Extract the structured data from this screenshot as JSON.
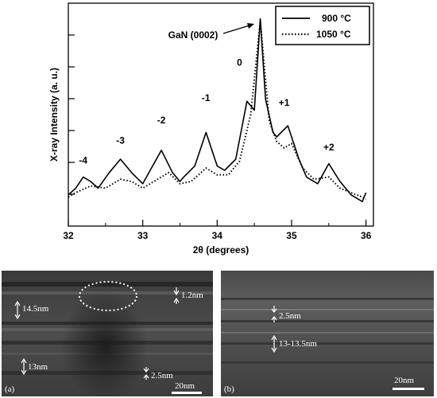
{
  "chart_data": {
    "type": "line",
    "xlabel": "2θ (degrees)",
    "ylabel": "X-ray Intensity (a. u.)",
    "xlim": [
      32,
      36.1
    ],
    "ylim": [
      0,
      100
    ],
    "x_ticks": [
      "32",
      "33",
      "34",
      "35",
      "36"
    ],
    "legend": {
      "placement": "top-right"
    },
    "series": [
      {
        "name": "900 °C",
        "style": "solid",
        "x": [
          32.0,
          32.1,
          32.2,
          32.3,
          32.4,
          32.55,
          32.7,
          32.85,
          33.0,
          33.1,
          33.25,
          33.4,
          33.5,
          33.55,
          33.7,
          33.85,
          34.0,
          34.1,
          34.25,
          34.4,
          34.5,
          34.58,
          34.65,
          34.75,
          34.8,
          34.95,
          35.1,
          35.2,
          35.35,
          35.5,
          35.65,
          35.8,
          35.95,
          36.0
        ],
        "y": [
          14,
          17,
          22,
          20,
          17,
          24,
          30,
          24,
          19,
          25,
          34,
          24,
          20,
          22,
          27,
          42,
          27,
          25,
          30,
          56,
          52,
          93,
          57,
          42,
          40,
          45,
          30,
          22,
          19,
          28,
          20,
          14,
          11,
          15
        ]
      },
      {
        "name": "1050 °C",
        "style": "dotted",
        "x": [
          32.0,
          32.1,
          32.3,
          32.5,
          32.7,
          32.85,
          33.0,
          33.2,
          33.35,
          33.5,
          33.65,
          33.85,
          34.0,
          34.15,
          34.3,
          34.45,
          34.58,
          34.7,
          34.8,
          34.9,
          35.0,
          35.15,
          35.3,
          35.5,
          35.65,
          35.8,
          35.95,
          36.0
        ],
        "y": [
          13,
          15,
          18,
          17,
          21,
          20,
          17,
          21,
          24,
          19,
          20,
          26,
          23,
          23,
          29,
          50,
          92,
          47,
          38,
          35,
          37,
          26,
          21,
          22,
          17,
          15,
          13,
          12
        ]
      }
    ],
    "annotations": [
      {
        "text": "GaN (0002)"
      },
      {
        "text": "-4",
        "x": 32.2,
        "y": 28
      },
      {
        "text": "-3",
        "x": 32.7,
        "y": 37
      },
      {
        "text": "-2",
        "x": 33.25,
        "y": 46
      },
      {
        "text": "-1",
        "x": 33.85,
        "y": 56
      },
      {
        "text": "0",
        "x": 34.3,
        "y": 72
      },
      {
        "text": "+1",
        "x": 34.9,
        "y": 54
      },
      {
        "text": "+2",
        "x": 35.5,
        "y": 34
      }
    ]
  },
  "panels": {
    "a": {
      "label": "(a)",
      "scale": "20nm",
      "annotations": [
        "14.5nm",
        "1.2nm",
        "13nm",
        "2.5nm"
      ]
    },
    "b": {
      "label": "(b)",
      "scale": "20nm",
      "annotations": [
        "2.5nm",
        "13-13.5nm"
      ]
    }
  }
}
